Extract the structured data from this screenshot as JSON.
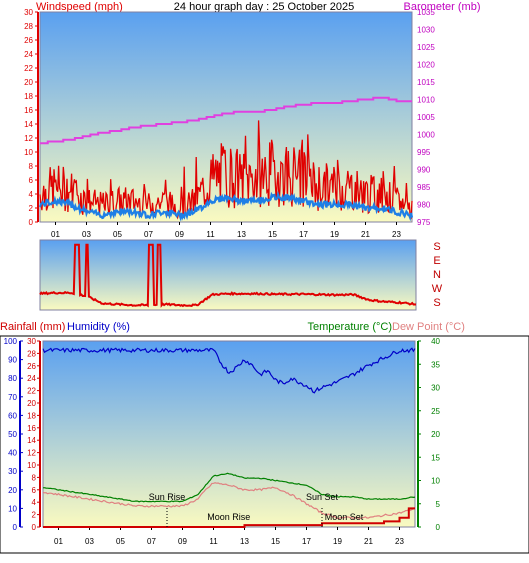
{
  "page": {
    "title": "24 hour graph day : 25 October 2025"
  },
  "colors": {
    "windspeed": "#e00000",
    "wind_avg": "#1e7fe6",
    "barometer": "#e040e0",
    "temperature": "#008000",
    "dewpoint": "#e08080",
    "humidity": "#0000c8",
    "rainfall": "#d00000",
    "sky_top": "#5aa0f0",
    "sky_bottom": "#fafac0"
  },
  "chart_data": [
    {
      "type": "line",
      "name": "wind-barometer",
      "title": "24 hour graph day : 25 October 2025",
      "ylabel_left": "Windspeed (mph)",
      "ylabel_right": "Barometer (mb)",
      "ylim_left": [
        0,
        30
      ],
      "ylim_right": [
        975,
        1035
      ],
      "yticks_left": [
        "0",
        "2",
        "4",
        "6",
        "8",
        "10",
        "12",
        "14",
        "16",
        "18",
        "20",
        "22",
        "24",
        "26",
        "28",
        "30"
      ],
      "yticks_right": [
        "975",
        "980",
        "985",
        "990",
        "995",
        "1000",
        "1005",
        "1010",
        "1015",
        "1020",
        "1025",
        "1030",
        "1035"
      ],
      "xticks": [
        "01",
        "03",
        "05",
        "07",
        "09",
        "11",
        "13",
        "15",
        "17",
        "19",
        "21",
        "23"
      ],
      "series": [
        {
          "key": "barometer",
          "x": [
            0,
            1,
            2,
            3,
            4,
            5,
            6,
            7,
            8,
            9,
            10,
            11,
            12,
            13,
            14,
            15,
            16,
            17,
            18,
            19,
            20,
            21,
            22,
            23,
            24
          ],
          "values": [
            997.5,
            998,
            998.5,
            999.5,
            1000.5,
            1001,
            1002,
            1002.5,
            1003,
            1003.5,
            1004,
            1005,
            1006,
            1006.5,
            1006.5,
            1007,
            1008,
            1008.5,
            1009,
            1009,
            1009.5,
            1010,
            1010.5,
            1009.5,
            1009.5
          ]
        },
        {
          "key": "wind_gust",
          "x": [
            0,
            1,
            2,
            3,
            4,
            5,
            6,
            7,
            8,
            9,
            10,
            11,
            12,
            13,
            14,
            15,
            16,
            17,
            18,
            19,
            20,
            21,
            22,
            23,
            24
          ],
          "values": [
            4,
            5,
            4.5,
            3,
            2.5,
            3,
            3,
            2.5,
            3,
            2,
            3,
            6,
            7,
            6,
            6.5,
            7,
            7,
            6,
            5,
            5,
            5,
            4,
            4,
            3,
            2
          ]
        },
        {
          "key": "wind_avg",
          "x": [
            0,
            1,
            2,
            3,
            4,
            5,
            6,
            7,
            8,
            9,
            10,
            11,
            12,
            13,
            14,
            15,
            16,
            17,
            18,
            19,
            20,
            21,
            22,
            23,
            24
          ],
          "values": [
            2.5,
            3,
            2.5,
            1.5,
            1,
            1.5,
            1.5,
            1,
            1.5,
            1,
            1.5,
            3,
            3.5,
            3,
            3,
            3.5,
            3.5,
            3,
            2.5,
            2.5,
            2.5,
            2,
            2,
            1.5,
            1
          ]
        }
      ]
    },
    {
      "type": "line",
      "name": "wind-direction",
      "ylabel_right": [
        "S",
        "E",
        "N",
        "W",
        "S"
      ],
      "ylim": [
        0,
        360
      ],
      "xticks": [],
      "series": [
        {
          "key": "direction",
          "x": [
            0,
            1,
            2,
            3,
            4,
            5,
            6,
            7,
            8,
            9,
            10,
            11,
            12,
            13,
            14,
            15,
            16,
            17,
            18,
            19,
            20,
            21,
            22,
            23,
            24
          ],
          "values": [
            75,
            80,
            80,
            60,
            20,
            15,
            10,
            10,
            15,
            10,
            10,
            70,
            75,
            75,
            75,
            72,
            72,
            72,
            70,
            68,
            70,
            40,
            30,
            25,
            15
          ]
        }
      ]
    },
    {
      "type": "line",
      "name": "temperature-humidity-rain",
      "ylabel_left": [
        "Rainfall (mm)",
        "Humidity (%)"
      ],
      "ylabel_right": [
        "Temperature (°C)",
        "Dew Point (°C)"
      ],
      "ylim_rain": [
        0,
        30
      ],
      "ylim_humidity": [
        0,
        100
      ],
      "ylim_temp": [
        0,
        40
      ],
      "yticks_rain": [
        "0",
        "2",
        "4",
        "6",
        "8",
        "10",
        "12",
        "14",
        "16",
        "18",
        "20",
        "22",
        "24",
        "26",
        "28",
        "30"
      ],
      "yticks_humidity": [
        "0",
        "10",
        "20",
        "30",
        "40",
        "50",
        "60",
        "70",
        "80",
        "90",
        "100"
      ],
      "yticks_temp": [
        "0",
        "5",
        "10",
        "15",
        "20",
        "25",
        "30",
        "35",
        "40"
      ],
      "xticks": [
        "01",
        "03",
        "05",
        "07",
        "09",
        "11",
        "13",
        "15",
        "17",
        "19",
        "21",
        "23"
      ],
      "annotations": [
        {
          "label": "Sun Rise",
          "x": 8
        },
        {
          "label": "Sun Set",
          "x": 18
        },
        {
          "label": "Moon Rise",
          "x": 12.5
        },
        {
          "label": "Moon Set",
          "x": 18
        }
      ],
      "series": [
        {
          "key": "humidity",
          "x": [
            0,
            2,
            4,
            6,
            8,
            10,
            11,
            11.5,
            12,
            12.5,
            13,
            13.5,
            14,
            14.5,
            15,
            15.5,
            16,
            16.5,
            17,
            17.5,
            18,
            19,
            20,
            21,
            22,
            23,
            24
          ],
          "values": [
            95,
            95,
            95,
            95,
            95,
            95,
            95,
            88,
            83,
            86,
            90,
            87,
            82,
            84,
            79,
            77,
            80,
            78,
            76,
            73,
            75,
            78,
            82,
            87,
            91,
            95,
            95
          ]
        },
        {
          "key": "temperature",
          "x": [
            0,
            2,
            4,
            6,
            8,
            9,
            10,
            10.5,
            11,
            12,
            13,
            14,
            15,
            16,
            17,
            18,
            19,
            20,
            21,
            22,
            23,
            24
          ],
          "values": [
            8.5,
            7.5,
            6.5,
            5.5,
            5.5,
            5.5,
            7,
            9,
            11,
            11.5,
            10.5,
            10.5,
            10,
            9.5,
            9,
            7,
            6.5,
            6.5,
            6,
            6,
            6,
            6.5
          ]
        },
        {
          "key": "dewpoint",
          "x": [
            0,
            2,
            4,
            6,
            8,
            9,
            10,
            10.5,
            11,
            12,
            13,
            14,
            15,
            16,
            17,
            18,
            19,
            20,
            21,
            22,
            23,
            24
          ],
          "values": [
            7.5,
            6.5,
            5.5,
            4.5,
            4.5,
            4.5,
            6,
            8,
            9.5,
            9,
            8,
            8,
            8.5,
            7,
            5,
            3,
            2,
            2,
            2,
            2.5,
            3,
            4
          ]
        },
        {
          "key": "rainfall",
          "x": [
            0,
            12,
            13,
            14,
            18,
            19,
            22,
            23,
            23.6,
            24
          ],
          "values": [
            0,
            0,
            0.3,
            0.3,
            0.6,
            0.6,
            0.9,
            1.5,
            3,
            3
          ]
        }
      ]
    }
  ]
}
